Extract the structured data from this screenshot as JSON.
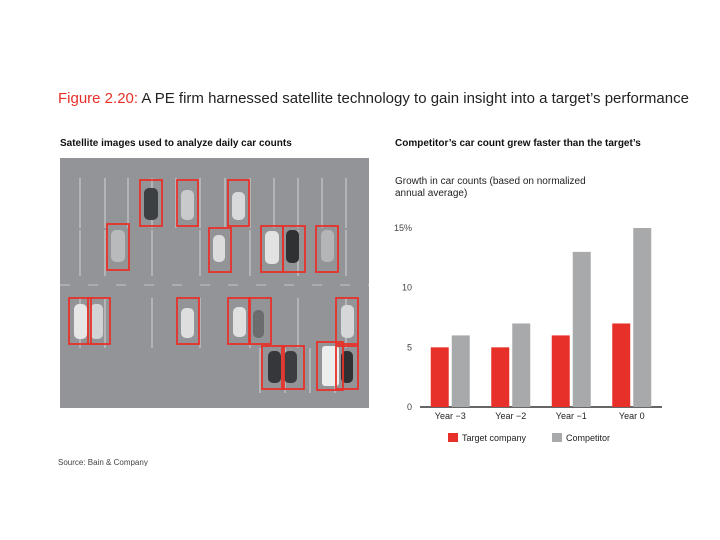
{
  "figure": {
    "label": "Figure 2.20:",
    "title": " A PE firm harnessed satellite technology to gain insight into a target’s performance",
    "left_panel_title": "Satellite images used to analyze daily car counts",
    "right_panel_title": "Competitor’s car count grew faster than the target’s",
    "source": "Source: Bain & Company"
  },
  "photo": {
    "description_icon": "parking-lot-satellite-image",
    "box_color": "#e8302a"
  },
  "chart_data": {
    "type": "bar",
    "ylabel": "Growth in car counts (based on normalized annual average)",
    "ylim": [
      0,
      15
    ],
    "yticks": [
      "0",
      "5",
      "10",
      "15%"
    ],
    "ytick_values": [
      0,
      5,
      10,
      15
    ],
    "categories": [
      "Year −3",
      "Year −2",
      "Year −1",
      "Year 0"
    ],
    "series": [
      {
        "name": "Target company",
        "color": "#e8302a",
        "values": [
          5,
          5,
          6,
          7
        ]
      },
      {
        "name": "Competitor",
        "color": "#a8a9ab",
        "values": [
          6,
          7,
          13,
          15
        ]
      }
    ],
    "legend_position": "bottom",
    "grid": false
  }
}
